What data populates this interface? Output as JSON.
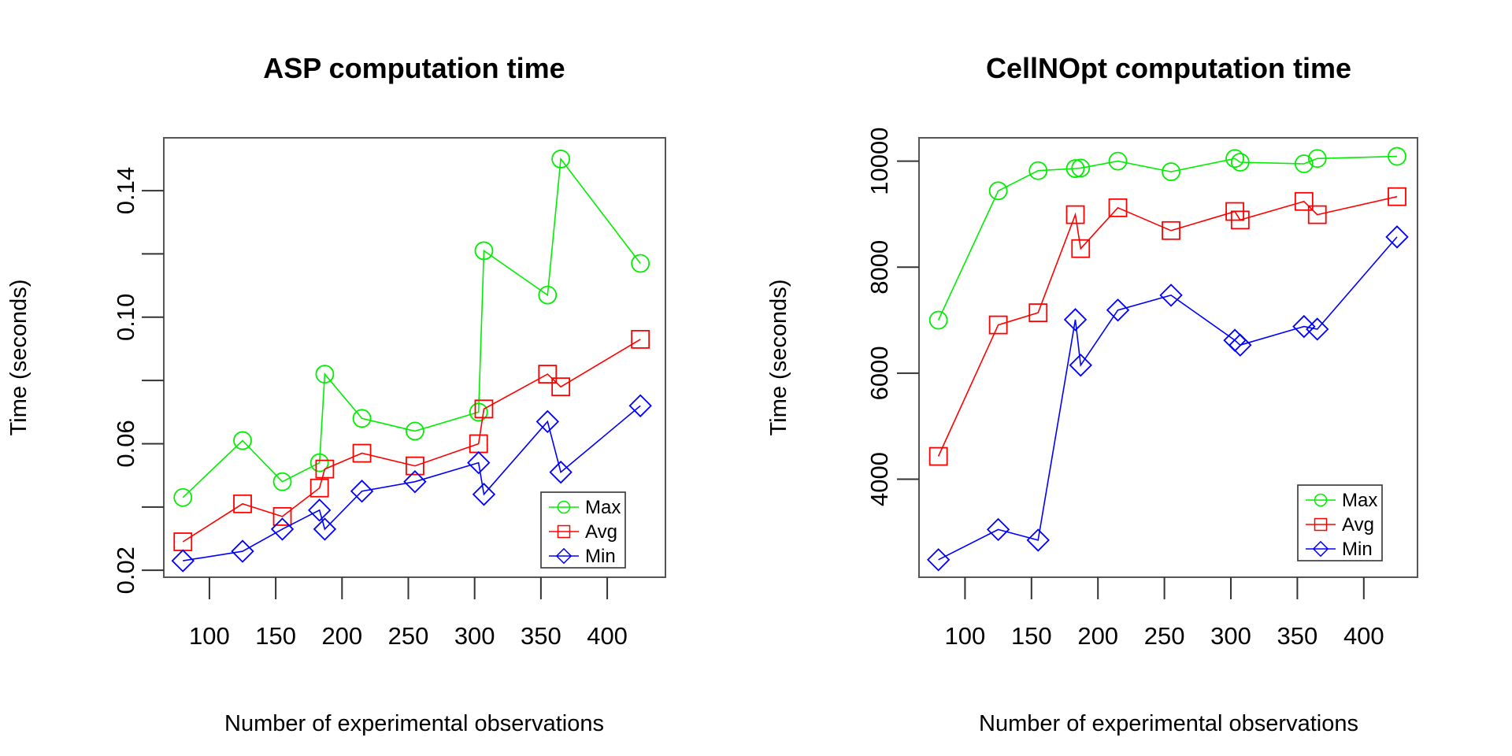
{
  "figure": {
    "background": "#ffffff",
    "axis_color": "#000000",
    "box_color": "#555555"
  },
  "chart_data": [
    {
      "type": "line",
      "title": "ASP computation time",
      "xlabel": "Number of experimental observations",
      "ylabel": "Time (seconds)",
      "x": [
        80,
        125,
        155,
        183,
        187,
        215,
        255,
        303,
        307,
        355,
        365,
        425
      ],
      "series": [
        {
          "name": "Max",
          "color": "#00ee00",
          "marker": "circle",
          "values": [
            0.043,
            0.061,
            0.048,
            0.054,
            0.082,
            0.068,
            0.064,
            0.07,
            0.121,
            0.107,
            0.15,
            0.117
          ]
        },
        {
          "name": "Avg",
          "color": "#ff0000",
          "marker": "square",
          "values": [
            0.029,
            0.041,
            0.037,
            0.046,
            0.052,
            0.057,
            0.053,
            0.06,
            0.071,
            0.082,
            0.078,
            0.093
          ]
        },
        {
          "name": "Min",
          "color": "#0000ff",
          "marker": "diamond",
          "values": [
            0.023,
            0.026,
            0.033,
            0.039,
            0.033,
            0.045,
            0.048,
            0.054,
            0.044,
            0.067,
            0.051,
            0.072
          ]
        }
      ],
      "x_tick_values": [
        100,
        150,
        200,
        250,
        300,
        350,
        400
      ],
      "x_tick_labels": [
        "100",
        "150",
        "200",
        "250",
        "300",
        "350",
        "400"
      ],
      "y_tick_values": [
        0.02,
        0.04,
        0.06,
        0.08,
        0.1,
        0.12,
        0.14
      ],
      "y_tick_labels": [
        "0.02",
        "",
        "0.06",
        "",
        "0.10",
        "",
        "0.14"
      ],
      "xlim": [
        65.6,
        443.9
      ],
      "ylim": [
        0.0178,
        0.1567
      ],
      "grid": false,
      "legend_position": "bottomright",
      "legend": [
        "Max",
        "Avg",
        "Min"
      ]
    },
    {
      "type": "line",
      "title": "CellNOpt computation time",
      "xlabel": "Number of experimental observations",
      "ylabel": "Time (seconds)",
      "x": [
        80,
        125,
        155,
        183,
        187,
        215,
        255,
        303,
        307,
        355,
        365,
        425
      ],
      "series": [
        {
          "name": "Max",
          "color": "#00ee00",
          "marker": "circle",
          "values": [
            7000,
            9440,
            9820,
            9860,
            9870,
            10000,
            9800,
            10050,
            9980,
            9950,
            10050,
            10090
          ]
        },
        {
          "name": "Avg",
          "color": "#ff0000",
          "marker": "square",
          "values": [
            4430,
            6910,
            7140,
            8990,
            8350,
            9120,
            8690,
            9050,
            8890,
            9240,
            8990,
            9330
          ]
        },
        {
          "name": "Min",
          "color": "#0000ff",
          "marker": "diamond",
          "values": [
            2480,
            3050,
            2850,
            7010,
            6150,
            7190,
            7470,
            6620,
            6530,
            6880,
            6830,
            8570
          ]
        }
      ],
      "x_tick_values": [
        100,
        150,
        200,
        250,
        300,
        350,
        400
      ],
      "x_tick_labels": [
        "100",
        "150",
        "200",
        "250",
        "300",
        "350",
        "400"
      ],
      "y_tick_values": [
        4000,
        6000,
        8000,
        10000
      ],
      "y_tick_labels": [
        "4000",
        "6000",
        "8000",
        "10000"
      ],
      "xlim": [
        65.4,
        440.4
      ],
      "ylim": [
        2150,
        10440
      ],
      "grid": false,
      "legend_position": "bottomright",
      "legend": [
        "Max",
        "Avg",
        "Min"
      ]
    }
  ]
}
